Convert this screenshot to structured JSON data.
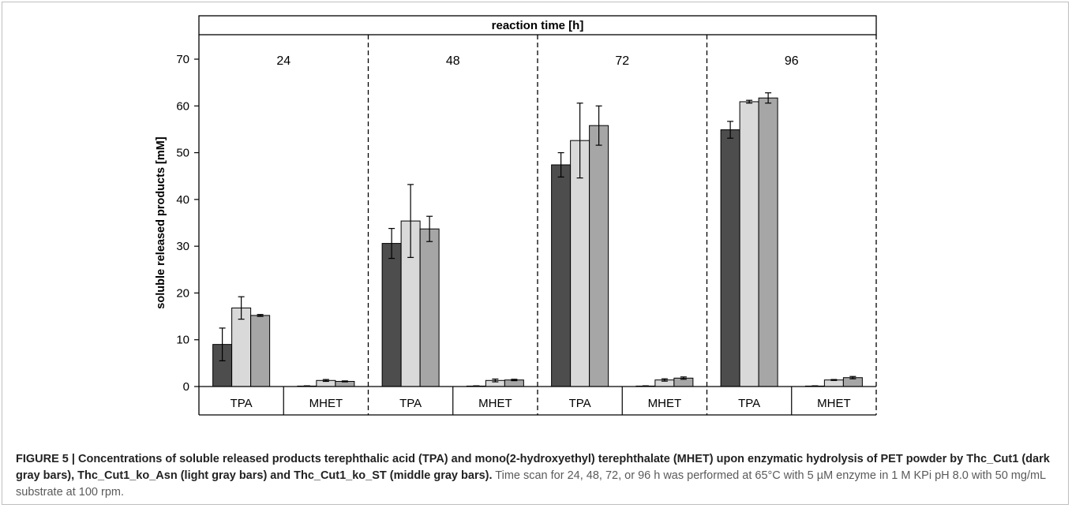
{
  "chart_data": {
    "type": "bar",
    "title": "reaction time [h]",
    "ylabel": "soluble released products [mM]",
    "ylim": [
      0,
      70
    ],
    "yticks": [
      0,
      10,
      20,
      30,
      40,
      50,
      60,
      70
    ],
    "panels": [
      "24",
      "48",
      "72",
      "96"
    ],
    "categories": [
      "TPA",
      "MHET"
    ],
    "series": [
      {
        "color": "#4d4d4d",
        "values": [
          [
            9.0,
            0.1
          ],
          [
            30.6,
            0.1
          ],
          [
            47.4,
            0.1
          ],
          [
            54.9,
            0.1
          ]
        ],
        "errors": [
          [
            3.5,
            0.05
          ],
          [
            3.2,
            0.05
          ],
          [
            2.6,
            0.05
          ],
          [
            1.8,
            0.05
          ]
        ]
      },
      {
        "color": "#d9d9d9",
        "values": [
          [
            16.8,
            1.3
          ],
          [
            35.4,
            1.3
          ],
          [
            52.6,
            1.4
          ],
          [
            60.9,
            1.4
          ]
        ],
        "errors": [
          [
            2.4,
            0.2
          ],
          [
            7.8,
            0.3
          ],
          [
            8.0,
            0.25
          ],
          [
            0.3,
            0.1
          ]
        ]
      },
      {
        "color": "#a6a6a6",
        "values": [
          [
            15.2,
            1.1
          ],
          [
            33.7,
            1.4
          ],
          [
            55.8,
            1.8
          ],
          [
            61.7,
            1.9
          ]
        ],
        "errors": [
          [
            0.2,
            0.1
          ],
          [
            2.7,
            0.15
          ],
          [
            4.2,
            0.25
          ],
          [
            1.1,
            0.25
          ]
        ]
      }
    ]
  },
  "caption": {
    "bold": "FIGURE 5 | Concentrations of soluble released products terephthalic acid (TPA) and mono(2-hydroxyethyl) terephthalate (MHET) upon enzymatic hydrolysis of PET powder by Thc_Cut1 (dark gray bars), Thc_Cut1_ko_Asn (light gray bars) and Thc_Cut1_ko_ST (middle gray bars).",
    "normal": " Time scan for 24, 48, 72, or 96 h was performed at 65°C with 5 µM enzyme in 1 M KPi pH 8.0 with 50 mg/mL substrate at 100 rpm."
  }
}
